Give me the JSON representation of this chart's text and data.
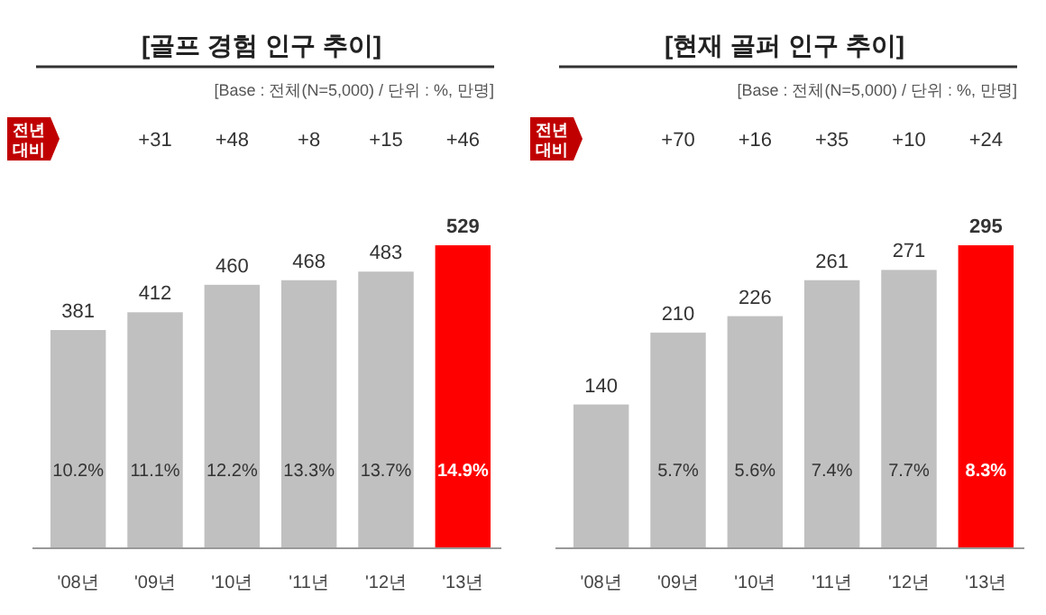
{
  "chart_data": [
    {
      "type": "bar",
      "title": "[골프 경험 인구 추이]",
      "subtitle": "[Base : 전체(N=5,000) / 단위 : %, 만명]",
      "categories": [
        "'08년",
        "'09년",
        "'10년",
        "'11년",
        "'12년",
        "'13년"
      ],
      "values": [
        381,
        412,
        460,
        468,
        483,
        529
      ],
      "colors": [
        "#c0c0c0",
        "#c0c0c0",
        "#c0c0c0",
        "#c0c0c0",
        "#c0c0c0",
        "#ff0000"
      ],
      "data_labels": true,
      "annotations": [
        "전년 대비",
        "+31",
        "+48",
        "+8",
        "+15",
        "+46",
        "10.2%",
        "11.1%",
        "12.2%",
        "13.3%",
        "13.7%",
        "14.9%"
      ]
    },
    {
      "type": "bar",
      "title": "[현재 골퍼 인구 추이]",
      "subtitle": "[Base : 전체(N=5,000) / 단위 : %, 만명]",
      "categories": [
        "'08년",
        "'09년",
        "'10년",
        "'11년",
        "'12년",
        "'13년"
      ],
      "values": [
        140,
        210,
        226,
        261,
        271,
        295
      ],
      "colors": [
        "#c0c0c0",
        "#c0c0c0",
        "#c0c0c0",
        "#c0c0c0",
        "#c0c0c0",
        "#ff0000"
      ],
      "data_labels": true,
      "annotations": [
        "전년 대비",
        "+70",
        "+16",
        "+35",
        "+10",
        "+24",
        "5.7%",
        "5.6%",
        "7.4%",
        "7.7%",
        "8.3%"
      ]
    }
  ]
}
